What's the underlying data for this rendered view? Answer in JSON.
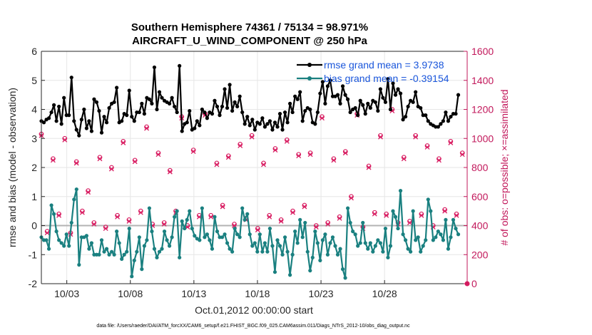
{
  "chart_data": {
    "type": "line",
    "title_line1": "Southern Hemisphere 74361 / 75134 = 98.971%",
    "title_line2": "AIRCRAFT_U_WIND_COMPONENT @ 250 hPa",
    "ylabel_left": "rmse and bias (model - observation)",
    "ylabel_right": "# of obs: o=possible; ×=assimilated",
    "xlabel": "Oct.01,2012 00:00:00 start",
    "footer": "data file: /Users/raeder/DAI/ATM_forcXX/CAM6_setup/f.e21.FHIST_BGC.f09_025.CAM6assim.011/Diags_NTrS_2012-10/obs_diag_output.nc",
    "ylim_left": [
      -2,
      6
    ],
    "ylim_right": [
      0,
      1600
    ],
    "xlim": [
      1.0,
      34.5
    ],
    "left_ticks": [
      "-2",
      "-1",
      "0",
      "1",
      "2",
      "3",
      "4",
      "5",
      "6"
    ],
    "right_ticks": [
      "0",
      "200",
      "400",
      "600",
      "800",
      "1000",
      "1200",
      "1400",
      "1600"
    ],
    "x_ticks": [
      {
        "day": 3,
        "label": "10/03"
      },
      {
        "day": 8,
        "label": "10/08"
      },
      {
        "day": 13,
        "label": "10/13"
      },
      {
        "day": 18,
        "label": "10/18"
      },
      {
        "day": 23,
        "label": "10/23"
      },
      {
        "day": 28,
        "label": "10/28"
      }
    ],
    "legend": [
      {
        "label": "rmse grand mean = 3.9738",
        "color": "#000000"
      },
      {
        "label": "bias grand mean = -0.39154",
        "color": "#1a8080"
      }
    ],
    "series": [
      {
        "name": "rmse",
        "color": "#000000",
        "values": [
          3.6,
          3.55,
          3.65,
          3.7,
          3.9,
          4.15,
          3.6,
          4.1,
          3.5,
          4.4,
          3.8,
          3.8,
          5.1,
          3.6,
          3.3,
          3.1,
          3.65,
          4.0,
          3.35,
          3.6,
          3.25,
          4.35,
          4.25,
          3.95,
          3.2,
          3.75,
          3.55,
          4.05,
          4.2,
          4.25,
          4.75,
          3.55,
          3.6,
          3.85,
          3.8,
          4.65,
          3.75,
          3.6,
          3.9,
          3.9,
          4.2,
          3.85,
          4.4,
          4.35,
          4.2,
          5.45,
          4.0,
          4.6,
          4.4,
          4.3,
          4.25,
          4.2,
          4.4,
          4.1,
          3.9,
          5.5,
          3.25,
          3.5,
          3.55,
          3.95,
          3.3,
          3.35,
          3.6,
          3.45,
          4.0,
          3.9,
          3.7,
          3.9,
          3.85,
          4.3,
          4.1,
          3.8,
          4.1,
          4.7,
          4.05,
          4.85,
          3.95,
          4.25,
          4.1,
          4.45,
          3.9,
          3.5,
          3.75,
          3.45,
          3.65,
          3.3,
          3.55,
          3.5,
          3.7,
          3.4,
          3.5,
          3.6,
          3.3,
          3.55,
          3.4,
          3.85,
          3.3,
          3.9,
          3.55,
          4.2,
          3.9,
          4.45,
          4.35,
          4.6,
          3.6,
          3.95,
          4.05,
          4.0,
          3.55,
          3.5,
          3.9,
          4.55,
          4.95,
          4.2,
          4.8,
          5.0,
          4.45,
          4.45,
          4.5,
          4.2,
          4.8,
          4.5,
          4.35,
          3.9,
          4.0,
          4.05,
          3.8,
          4.3,
          4.15,
          3.85,
          4.2,
          4.05,
          4.3,
          4.25,
          3.95,
          4.7,
          4.4,
          4.25,
          5.05,
          4.0,
          4.9,
          4.5,
          4.7,
          4.55,
          3.65,
          3.75,
          4.1,
          4.3,
          4.25,
          4.6,
          4.1,
          4.05,
          3.8,
          3.8,
          3.6,
          3.5,
          3.45,
          3.4,
          3.4,
          3.5,
          3.6,
          3.9,
          3.6,
          3.75,
          3.85,
          3.85,
          4.5
        ]
      },
      {
        "name": "bias",
        "color": "#1a8080",
        "values": [
          -0.4,
          -0.5,
          -0.5,
          -0.8,
          0.7,
          0.4,
          -0.2,
          -0.5,
          -0.6,
          -0.7,
          -0.3,
          -0.7,
          0.1,
          0.9,
          1.25,
          -1.35,
          -0.4,
          -0.4,
          -0.35,
          -0.8,
          -0.6,
          -1.0,
          -1.0,
          -1.0,
          -0.5,
          -0.9,
          -0.8,
          -1.0,
          -0.9,
          -1.0,
          -0.2,
          -0.6,
          -1.15,
          -1.0,
          -0.9,
          -0.1,
          -1.75,
          -1.2,
          -0.9,
          -0.4,
          -1.5,
          -0.7,
          -0.5,
          0.6,
          -0.2,
          -0.8,
          -1.1,
          -0.9,
          -0.8,
          -0.2,
          -0.5,
          -0.7,
          -0.4,
          0.3,
          0.5,
          -1.1,
          0.15,
          -0.1,
          0.2,
          0.5,
          -0.1,
          -0.35,
          -0.45,
          -0.5,
          0.6,
          -0.4,
          -0.3,
          -0.5,
          -0.8,
          0.3,
          -0.2,
          -0.4,
          -0.4,
          -0.3,
          -0.6,
          -0.8,
          -0.9,
          -0.1,
          -0.3,
          -0.4,
          0.6,
          0.2,
          0.4,
          -0.3,
          -0.7,
          -0.6,
          -0.9,
          -0.3,
          -0.9,
          -0.6,
          -0.9,
          -0.1,
          -0.7,
          -1.6,
          -0.5,
          -0.7,
          -1.0,
          -0.4,
          -0.9,
          -1.7,
          -1.0,
          -0.2,
          -0.6,
          0.2,
          -0.4,
          0.1,
          -0.9,
          -1.55,
          -1.1,
          -0.2,
          -0.6,
          -1.2,
          -0.5,
          -0.3,
          -1.0,
          -0.6,
          -0.4,
          -0.7,
          -1.0,
          -0.8,
          -1.5,
          -1.8,
          0.6,
          0.1,
          -0.2,
          -0.3,
          -0.7,
          -0.6,
          0.1,
          -0.6,
          -0.8,
          -0.6,
          -0.9,
          -0.7,
          -0.5,
          -0.6,
          -0.9,
          -0.1,
          -1.1,
          -0.7,
          0.5,
          0.3,
          -0.1,
          1.2,
          -0.3,
          -0.5,
          -0.8,
          -0.9,
          0.5,
          -0.5,
          -0.4,
          -0.9,
          -0.7,
          -0.5,
          0.9,
          0.5,
          -0.5,
          -0.4,
          -0.2,
          -0.3,
          -0.5,
          0.2,
          -0.8,
          -0.4,
          0.2,
          -0.1,
          -0.3
        ]
      }
    ],
    "obs_possible_peaks": [
      1030,
      860,
      1000,
      840,
      640,
      870,
      800,
      980,
      850,
      1080,
      900,
      780,
      1150,
      920,
      1170,
      830,
      880,
      960,
      1020,
      830,
      930,
      990,
      890,
      900,
      1150,
      860,
      910,
      1170,
      810,
      1020,
      1200,
      870,
      1020,
      950,
      860,
      980,
      900
    ],
    "obs_possible_troughs": [
      360,
      480,
      350,
      500,
      420,
      390,
      470,
      440,
      500,
      410,
      420,
      500,
      400,
      470,
      470,
      540,
      410,
      450,
      380,
      470,
      440,
      500,
      540,
      400,
      420,
      460,
      600,
      390,
      490,
      480,
      420,
      430,
      480,
      400,
      510,
      480,
      420
    ],
    "obs_assimilated_peaks": [
      1020,
      850,
      990,
      830,
      630,
      860,
      790,
      970,
      840,
      1070,
      890,
      770,
      1140,
      910,
      1160,
      820,
      870,
      950,
      1010,
      820,
      920,
      980,
      880,
      890,
      1140,
      850,
      900,
      1160,
      800,
      1010,
      1190,
      860,
      1010,
      940,
      850,
      970,
      890
    ],
    "obs_assimilated_troughs": [
      350,
      470,
      340,
      490,
      410,
      380,
      460,
      430,
      490,
      400,
      410,
      490,
      390,
      460,
      460,
      530,
      400,
      440,
      370,
      460,
      430,
      490,
      530,
      390,
      410,
      450,
      590,
      380,
      480,
      470,
      410,
      420,
      470,
      390,
      500,
      470,
      410
    ]
  }
}
